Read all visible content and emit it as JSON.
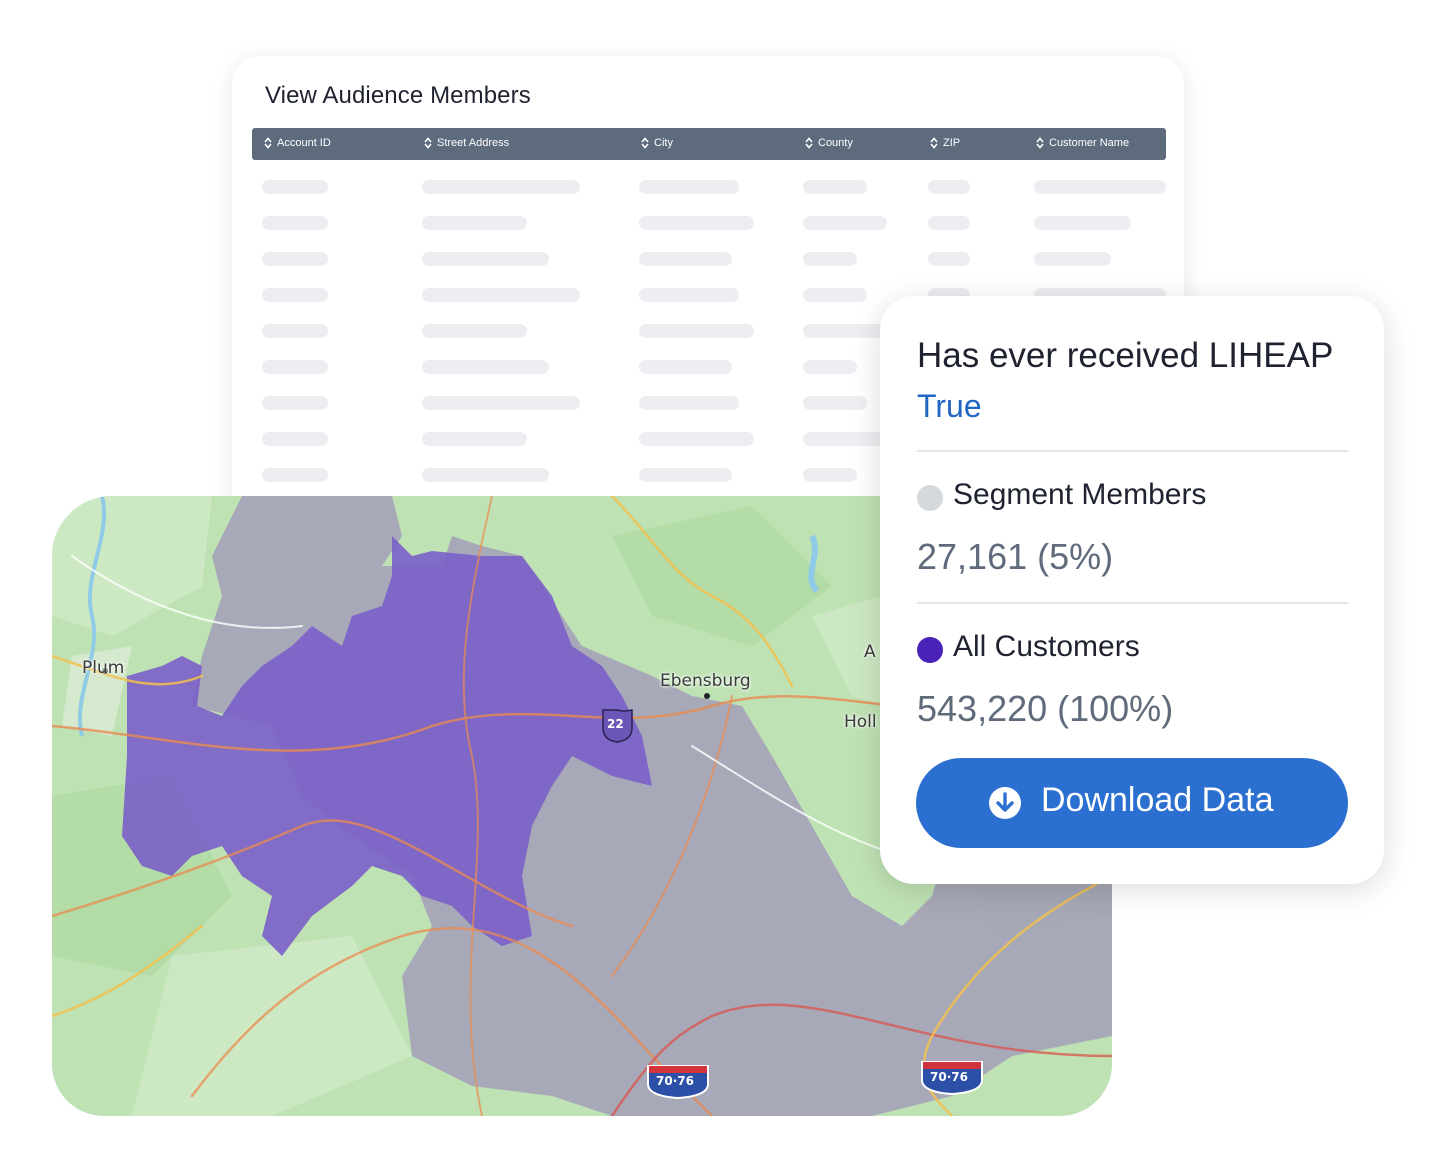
{
  "table": {
    "title": "View Audience Members",
    "columns": [
      "Account ID",
      "Street Address",
      "City",
      "County",
      "ZIP",
      "Customer Name"
    ]
  },
  "map": {
    "labels": [
      "Plum",
      "Ebensburg",
      "A",
      "Holl"
    ],
    "route_shields": [
      "22",
      "70·76",
      "70·76"
    ],
    "colors": {
      "land": "#bfe2b4",
      "segment_region": "#7a5fc9",
      "customer_region": "#a39fb8"
    }
  },
  "info": {
    "criteria_label": "Has ever received LIHEAP",
    "criteria_value": "True",
    "segment": {
      "label": "Segment Members",
      "count": "27,161 (5%)",
      "color": "#d5d8dd"
    },
    "all": {
      "label": "All Customers",
      "count": "543,220 (100%)",
      "color": "#4b22b8"
    },
    "download_label": "Download Data",
    "download_icon": "download-circle-icon",
    "accent": "#2b6fd0"
  }
}
